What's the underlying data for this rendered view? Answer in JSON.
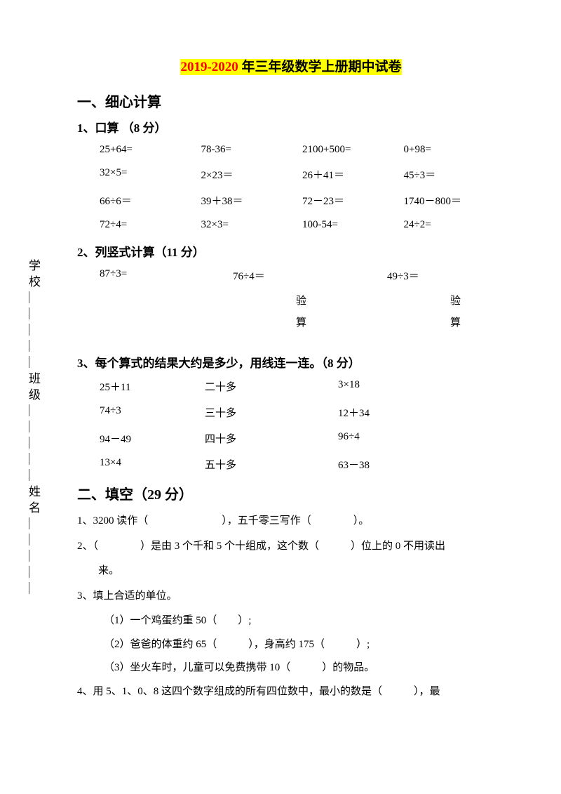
{
  "sidebar": {
    "text": "学校＿＿＿＿＿班级＿＿＿＿＿姓名＿＿＿＿＿"
  },
  "title": {
    "year": "2019-2020",
    "rest": " 年三年级数学上册期中试卷"
  },
  "section1": {
    "heading": "一、细心计算",
    "q1": {
      "heading": "1、口算 （8 分）",
      "rows": [
        [
          "25+64=",
          "78-36=",
          "2100+500=",
          "0+98="
        ],
        [
          "32×5=",
          "2×23＝",
          "26＋41＝",
          "45÷3＝"
        ],
        [
          "66÷6＝",
          "39＋38＝",
          "72－23＝",
          "1740－800＝"
        ],
        [
          "72÷4=",
          "32×3=",
          "100-54=",
          "24÷2="
        ]
      ]
    },
    "q2": {
      "heading": "2、列竖式计算（11 分）",
      "row": [
        "87÷3=",
        "76÷4＝",
        "49÷3＝"
      ],
      "verify1": [
        "",
        "验",
        "验"
      ],
      "verify2": [
        "",
        "算",
        "算"
      ]
    },
    "q3": {
      "heading": "3、每个算式的结果大约是多少，用线连一连。（8 分）",
      "rows": [
        [
          "25＋11",
          "二十多",
          "3×18"
        ],
        [
          "74÷3",
          "三十多",
          "12＋34"
        ],
        [
          "94－49",
          "四十多",
          "96÷4"
        ],
        [
          "13×4",
          "五十多",
          "63－38"
        ]
      ]
    }
  },
  "section2": {
    "heading": "二、填空（29 分）",
    "items": [
      "1、3200 读作（　　　　　　　），五千零三写作（　　　　）。",
      "2、（　　　　）是由 3 个千和 5 个十组成，这个数（　　　）位上的 0 不用读出",
      "来。",
      "3、填上合适的单位。"
    ],
    "subs": [
      "（1）一个鸡蛋约重 50（　　）;",
      "（2）爸爸的体重约 65（　　　），身高约 175（　　　）;",
      "（3）坐火车时，儿童可以免费携带 10（　　　）的物品。"
    ],
    "item4": "4、用 5、1、0、8 这四个数字组成的所有四位数中，最小的数是（　　　），最"
  }
}
